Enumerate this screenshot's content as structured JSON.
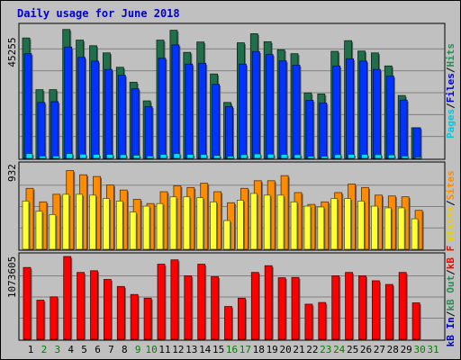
{
  "chart_data": [
    {
      "type": "bar",
      "title": "Daily usage for June 2018",
      "categories": [
        "1",
        "2",
        "3",
        "4",
        "5",
        "6",
        "7",
        "8",
        "9",
        "10",
        "11",
        "12",
        "13",
        "14",
        "15",
        "16",
        "17",
        "18",
        "19",
        "20",
        "21",
        "22",
        "23",
        "24",
        "25",
        "26",
        "27",
        "28",
        "29",
        "30",
        "31"
      ],
      "weekend_days": [
        "2",
        "3",
        "9",
        "10",
        "16",
        "17",
        "23",
        "24",
        "30",
        "31"
      ],
      "y_tick_label": "45255",
      "y_label_parts": [
        {
          "text": "Pages",
          "color": "#00c8d8"
        },
        {
          "text": "Files",
          "color": "#0000cc"
        },
        {
          "text": "Hits",
          "color": "#2e8b57"
        }
      ],
      "series": [
        {
          "name": "Hits",
          "color": "#1f6f4a",
          "values": [
            45200,
            25800,
            25800,
            48400,
            44400,
            42300,
            39600,
            34200,
            28600,
            21600,
            44400,
            48100,
            39800,
            43700,
            31700,
            21000,
            43400,
            46800,
            43800,
            40800,
            39300,
            24600,
            24200,
            40200,
            44200,
            40300,
            39600,
            34700,
            23600,
            11500,
            0
          ]
        },
        {
          "name": "Files",
          "color": "#0033ff",
          "values": [
            39300,
            21000,
            21300,
            41800,
            37900,
            36500,
            33400,
            31200,
            26100,
            19400,
            37600,
            42600,
            35400,
            35700,
            27800,
            19400,
            35400,
            40100,
            39000,
            36600,
            35000,
            21800,
            20800,
            34700,
            37400,
            36500,
            33400,
            30900,
            21900,
            11500,
            0
          ]
        },
        {
          "name": "Pages",
          "color": "#00e0f0",
          "values": [
            1800,
            900,
            900,
            1800,
            1600,
            1500,
            1500,
            1400,
            1200,
            900,
            1500,
            1800,
            1500,
            1500,
            1100,
            800,
            1400,
            1700,
            1600,
            1500,
            1400,
            800,
            800,
            1400,
            1500,
            1500,
            1400,
            1300,
            900,
            500,
            0
          ]
        }
      ]
    },
    {
      "type": "bar",
      "categories": [
        "1",
        "2",
        "3",
        "4",
        "5",
        "6",
        "7",
        "8",
        "9",
        "10",
        "11",
        "12",
        "13",
        "14",
        "15",
        "16",
        "17",
        "18",
        "19",
        "20",
        "21",
        "22",
        "23",
        "24",
        "25",
        "26",
        "27",
        "28",
        "29",
        "30",
        "31"
      ],
      "y_tick_label": "932",
      "y_label_parts": [
        {
          "text": "Visits",
          "color": "#e8d000"
        },
        {
          "text": "Sites",
          "color": "#ff8c00"
        }
      ],
      "series": [
        {
          "name": "Sites",
          "color": "#ff8c00",
          "values": [
            720,
            560,
            650,
            930,
            880,
            860,
            760,
            700,
            590,
            540,
            680,
            750,
            730,
            780,
            680,
            550,
            720,
            810,
            810,
            870,
            670,
            530,
            560,
            670,
            770,
            730,
            640,
            630,
            620,
            460,
            0
          ]
        },
        {
          "name": "Visits",
          "color": "#ffff33",
          "values": [
            570,
            450,
            410,
            650,
            650,
            640,
            600,
            570,
            440,
            510,
            540,
            620,
            620,
            610,
            560,
            340,
            580,
            660,
            640,
            640,
            560,
            510,
            500,
            600,
            600,
            570,
            510,
            490,
            490,
            360,
            0
          ]
        }
      ]
    },
    {
      "type": "bar",
      "categories": [
        "1",
        "2",
        "3",
        "4",
        "5",
        "6",
        "7",
        "8",
        "9",
        "10",
        "11",
        "12",
        "13",
        "14",
        "15",
        "16",
        "17",
        "18",
        "19",
        "20",
        "21",
        "22",
        "23",
        "24",
        "25",
        "26",
        "27",
        "28",
        "29",
        "30",
        "31"
      ],
      "y_tick_label": "1073605",
      "y_label_parts": [
        {
          "text": "kB In",
          "color": "#0000cc"
        },
        {
          "text": "kB Out",
          "color": "#2e8b57"
        },
        {
          "text": "kB F",
          "color": "#ff0000"
        }
      ],
      "series": [
        {
          "name": "kB F",
          "color": "#ff0000",
          "values": [
            1073600,
            585000,
            635000,
            1238000,
            1000000,
            1025000,
            895000,
            790000,
            670000,
            615000,
            1123000,
            1188000,
            950000,
            1123000,
            935000,
            490000,
            615000,
            1000000,
            1100000,
            920000,
            925000,
            525000,
            550000,
            950000,
            1000000,
            950000,
            875000,
            820000,
            1000000,
            545000,
            0
          ]
        }
      ]
    }
  ]
}
